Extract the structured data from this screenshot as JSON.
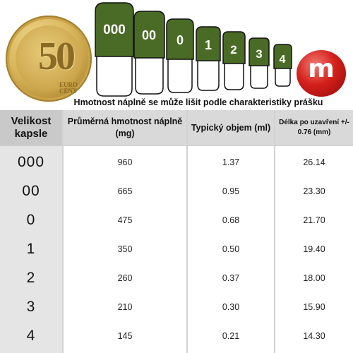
{
  "caption": "Hmotnost náplně se může lišit podle charakteristiky prášku",
  "coin": {
    "value": "50",
    "text_line1": "EURO",
    "text_line2": "CENT"
  },
  "capsule_labels": [
    "000",
    "00",
    "0",
    "1",
    "2",
    "3",
    "4"
  ],
  "candy_letter": "m",
  "colors": {
    "capsule_green": "#4a6b25",
    "header_gray": "#d9d9d9",
    "size_col_gray": "#e5e5e5",
    "candy_red": "#d4201b"
  },
  "table": {
    "headers": {
      "size": "Velikost kapsle",
      "fill_weight": "Průměrná hmotnost náplně (mg)",
      "volume": "Typický objem (ml)",
      "length": "Délka po uzavření +/- 0.76 (mm)"
    },
    "rows": [
      {
        "size": "000",
        "fill_weight": "960",
        "volume": "1.37",
        "length": "26.14"
      },
      {
        "size": "00",
        "fill_weight": "665",
        "volume": "0.95",
        "length": "23.30"
      },
      {
        "size": "0",
        "fill_weight": "475",
        "volume": "0.68",
        "length": "21.70"
      },
      {
        "size": "1",
        "fill_weight": "350",
        "volume": "0.50",
        "length": "19.40"
      },
      {
        "size": "2",
        "fill_weight": "260",
        "volume": "0.37",
        "length": "18.00"
      },
      {
        "size": "3",
        "fill_weight": "210",
        "volume": "0.30",
        "length": "15.90"
      },
      {
        "size": "4",
        "fill_weight": "145",
        "volume": "0.21",
        "length": "14.30"
      }
    ]
  }
}
